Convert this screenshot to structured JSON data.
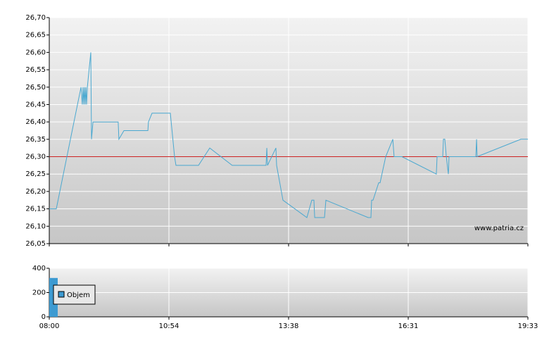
{
  "chart_data": [
    {
      "type": "line",
      "color": "#4aa8d0",
      "watermark": "www.patria.cz",
      "reference_line": 26.3,
      "reference_color": "#cc2222",
      "xlim": [
        0,
        4
      ],
      "xticks": [
        {
          "value": 0,
          "label": "08:00"
        },
        {
          "value": 1,
          "label": "10:54"
        },
        {
          "value": 2,
          "label": "13:38"
        },
        {
          "value": 3,
          "label": "16:31"
        },
        {
          "value": 4,
          "label": "19:33"
        }
      ],
      "ylim": [
        26.05,
        26.7
      ],
      "yticks": [
        {
          "value": 26.05,
          "label": "26,05"
        },
        {
          "value": 26.1,
          "label": "26,10"
        },
        {
          "value": 26.15,
          "label": "26,15"
        },
        {
          "value": 26.2,
          "label": "26,20"
        },
        {
          "value": 26.25,
          "label": "26,25"
        },
        {
          "value": 26.3,
          "label": "26,30"
        },
        {
          "value": 26.35,
          "label": "26,35"
        },
        {
          "value": 26.4,
          "label": "26,40"
        },
        {
          "value": 26.45,
          "label": "26,45"
        },
        {
          "value": 26.5,
          "label": "26,50"
        },
        {
          "value": 26.55,
          "label": "26,55"
        },
        {
          "value": 26.6,
          "label": "26,60"
        },
        {
          "value": 26.65,
          "label": "26,65"
        },
        {
          "value": 26.7,
          "label": "26,70"
        }
      ],
      "x": [
        0,
        0.059,
        0.265,
        0.276,
        0.282,
        0.288,
        0.294,
        0.3,
        0.306,
        0.312,
        0.318,
        0.347,
        0.353,
        0.365,
        0.576,
        0.582,
        0.624,
        0.824,
        0.829,
        0.859,
        1.012,
        1.047,
        1.059,
        1.247,
        1.341,
        1.529,
        1.812,
        1.818,
        1.824,
        1.894,
        1.9,
        1.953,
        2.153,
        2.194,
        2.212,
        2.218,
        2.3,
        2.312,
        2.665,
        2.688,
        2.694,
        2.706,
        2.753,
        2.765,
        2.812,
        2.871,
        2.882,
        2.947,
        3.235,
        3.241,
        3.288,
        3.294,
        3.306,
        3.318,
        3.335,
        3.341,
        3.565,
        3.571,
        3.576,
        3.941,
        4
      ],
      "values": [
        26.15,
        26.15,
        26.5,
        26.45,
        26.5,
        26.45,
        26.5,
        26.45,
        26.5,
        26.45,
        26.5,
        26.6,
        26.35,
        26.4,
        26.4,
        26.35,
        26.375,
        26.375,
        26.4,
        26.425,
        26.425,
        26.3,
        26.275,
        26.275,
        26.325,
        26.275,
        26.275,
        26.325,
        26.275,
        26.325,
        26.275,
        26.175,
        26.125,
        26.175,
        26.175,
        26.125,
        26.125,
        26.175,
        26.125,
        26.125,
        26.175,
        26.175,
        26.225,
        26.225,
        26.3,
        26.35,
        26.3,
        26.3,
        26.25,
        26.3,
        26.3,
        26.35,
        26.35,
        26.3,
        26.25,
        26.3,
        26.3,
        26.35,
        26.3,
        26.35,
        26.35
      ]
    },
    {
      "type": "bar",
      "color": "#3d9ad1",
      "legend": "Objem",
      "xlim": [
        0,
        4
      ],
      "xticks": [
        {
          "value": 0,
          "label": "08:00"
        },
        {
          "value": 1,
          "label": "10:54"
        },
        {
          "value": 2,
          "label": "13:38"
        },
        {
          "value": 3,
          "label": "16:31"
        },
        {
          "value": 4,
          "label": "19:33"
        }
      ],
      "ylim": [
        0,
        400
      ],
      "yticks": [
        0,
        200,
        400
      ],
      "x": [
        0
      ],
      "values": [
        320
      ]
    }
  ]
}
